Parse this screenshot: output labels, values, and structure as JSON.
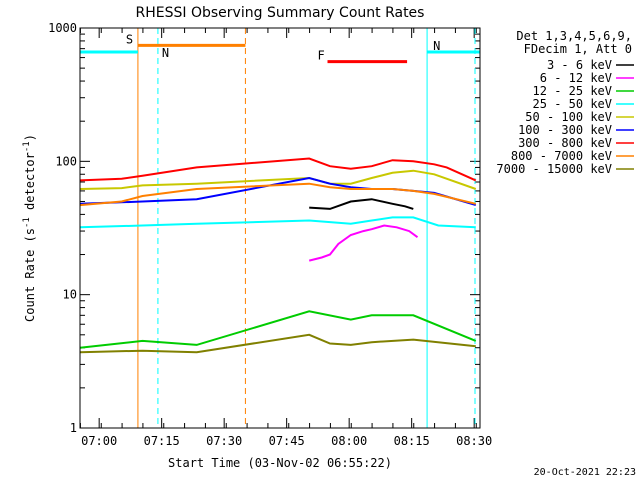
{
  "chart_data": {
    "type": "line",
    "title": "RHESSI Observing Summary Count Rates",
    "xlabel": "Start Time (03-Nov-02 06:55:22)",
    "ylabel": "Count Rate (s",
    "ylabel_sup1": "-1",
    "ylabel_mid": " detector",
    "ylabel_sup2": "-1",
    "ylabel_end": ")",
    "yscale": "log",
    "ylim": [
      1,
      1000
    ],
    "xlim_minutes": [
      0,
      96
    ],
    "y_ticks": [
      {
        "v": 1,
        "label": "1"
      },
      {
        "v": 10,
        "label": "10"
      },
      {
        "v": 100,
        "label": "100"
      },
      {
        "v": 1000,
        "label": "1000"
      }
    ],
    "x_ticks": [
      {
        "m": 4.6,
        "label": "07:00"
      },
      {
        "m": 19.6,
        "label": "07:15"
      },
      {
        "m": 34.6,
        "label": "07:30"
      },
      {
        "m": 49.6,
        "label": "07:45"
      },
      {
        "m": 64.6,
        "label": "08:00"
      },
      {
        "m": 79.6,
        "label": "08:15"
      },
      {
        "m": 94.6,
        "label": "08:30"
      }
    ],
    "legend_header": [
      "Det 1,3,4,5,6,9,",
      "FDecim 1, Att 0"
    ],
    "timestamp": "20-Oct-2021 22:23",
    "series": [
      {
        "name": "3 - 6 keV",
        "color": "#000000",
        "points": [
          [
            55,
            45
          ],
          [
            60,
            44
          ],
          [
            65,
            50
          ],
          [
            70,
            52
          ],
          [
            75,
            48
          ],
          [
            78,
            46
          ],
          [
            80,
            44
          ]
        ]
      },
      {
        "name": "6 - 12 keV",
        "color": "#ff00ff",
        "points": [
          [
            55,
            18
          ],
          [
            58,
            19
          ],
          [
            60,
            20
          ],
          [
            62,
            24
          ],
          [
            65,
            28
          ],
          [
            68,
            30
          ],
          [
            70,
            31
          ],
          [
            73,
            33
          ],
          [
            76,
            32
          ],
          [
            79,
            30
          ],
          [
            81,
            27
          ]
        ]
      },
      {
        "name": "12 - 25 keV",
        "color": "#00cc00",
        "points": [
          [
            0,
            4
          ],
          [
            15,
            4.5
          ],
          [
            28,
            4.2
          ],
          [
            55,
            7.5
          ],
          [
            65,
            6.5
          ],
          [
            70,
            7
          ],
          [
            80,
            7
          ],
          [
            95,
            4.5
          ]
        ]
      },
      {
        "name": "25 - 50 keV",
        "color": "#00ffff",
        "points": [
          [
            0,
            32
          ],
          [
            15,
            33
          ],
          [
            28,
            34
          ],
          [
            55,
            36
          ],
          [
            60,
            35
          ],
          [
            65,
            34
          ],
          [
            70,
            36
          ],
          [
            75,
            38
          ],
          [
            80,
            38
          ],
          [
            86,
            33
          ],
          [
            95,
            32
          ]
        ]
      },
      {
        "name": "50 - 100 keV",
        "color": "#c8c800",
        "points": [
          [
            0,
            62
          ],
          [
            10,
            63
          ],
          [
            15,
            66
          ],
          [
            28,
            68
          ],
          [
            55,
            75
          ],
          [
            60,
            68
          ],
          [
            65,
            68
          ],
          [
            70,
            75
          ],
          [
            75,
            82
          ],
          [
            80,
            85
          ],
          [
            85,
            80
          ],
          [
            95,
            62
          ]
        ]
      },
      {
        "name": "100 - 300 keV",
        "color": "#0000ff",
        "points": [
          [
            0,
            48
          ],
          [
            15,
            50
          ],
          [
            28,
            52
          ],
          [
            55,
            75
          ],
          [
            60,
            68
          ],
          [
            65,
            64
          ],
          [
            70,
            62
          ],
          [
            75,
            62
          ],
          [
            80,
            60
          ],
          [
            85,
            58
          ],
          [
            95,
            47
          ]
        ]
      },
      {
        "name": "300 - 800 keV",
        "color": "#ff0000",
        "points": [
          [
            0,
            72
          ],
          [
            10,
            74
          ],
          [
            15,
            78
          ],
          [
            28,
            90
          ],
          [
            55,
            105
          ],
          [
            60,
            92
          ],
          [
            65,
            88
          ],
          [
            70,
            92
          ],
          [
            75,
            102
          ],
          [
            80,
            100
          ],
          [
            85,
            95
          ],
          [
            88,
            90
          ],
          [
            95,
            72
          ]
        ]
      },
      {
        "name": "800 - 7000 keV",
        "color": "#ff8000",
        "points": [
          [
            0,
            47
          ],
          [
            10,
            50
          ],
          [
            15,
            55
          ],
          [
            28,
            62
          ],
          [
            55,
            68
          ],
          [
            60,
            64
          ],
          [
            65,
            62
          ],
          [
            70,
            62
          ],
          [
            75,
            62
          ],
          [
            80,
            60
          ],
          [
            85,
            57
          ],
          [
            95,
            48
          ]
        ]
      },
      {
        "name": "7000 - 15000 keV",
        "color": "#808000",
        "points": [
          [
            0,
            3.7
          ],
          [
            15,
            3.8
          ],
          [
            28,
            3.7
          ],
          [
            55,
            5
          ],
          [
            60,
            4.3
          ],
          [
            65,
            4.2
          ],
          [
            70,
            4.4
          ],
          [
            80,
            4.6
          ],
          [
            95,
            4.1
          ]
        ]
      }
    ],
    "flags": [
      {
        "label": "S",
        "color": "#ff8000",
        "start_min": 13.9,
        "end_min": 39.7,
        "level": 740
      },
      {
        "label": "N",
        "color": "#00ffff",
        "start_min": 0,
        "end_min": 13.9,
        "level": 660
      },
      {
        "label": "N",
        "color": "#00ffff",
        "start_min": 83.3,
        "end_min": 96,
        "level": 660
      },
      {
        "label": "F",
        "color": "#ff0000",
        "start_min": 59.4,
        "end_min": 78.5,
        "level": 560
      }
    ],
    "vlines": [
      {
        "min": 13.9,
        "color": "#ff8000",
        "style": "solid"
      },
      {
        "min": 39.7,
        "color": "#ff8000",
        "style": "dashed"
      },
      {
        "min": 18.7,
        "color": "#00ffff",
        "style": "dashed"
      },
      {
        "min": 83.3,
        "color": "#00ffff",
        "style": "solid"
      },
      {
        "min": 94.8,
        "color": "#00ffff",
        "style": "dashed"
      }
    ]
  }
}
